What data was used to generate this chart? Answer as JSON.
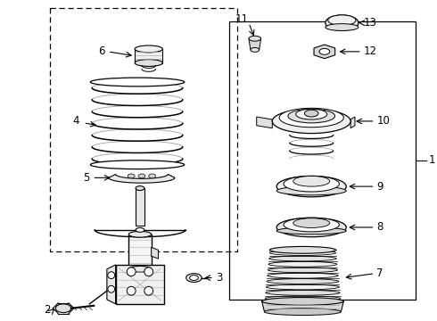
{
  "bg_color": "#ffffff",
  "lc": "#000000",
  "lgc": "#aaaaaa",
  "figsize": [
    4.9,
    3.6
  ],
  "dpi": 100
}
